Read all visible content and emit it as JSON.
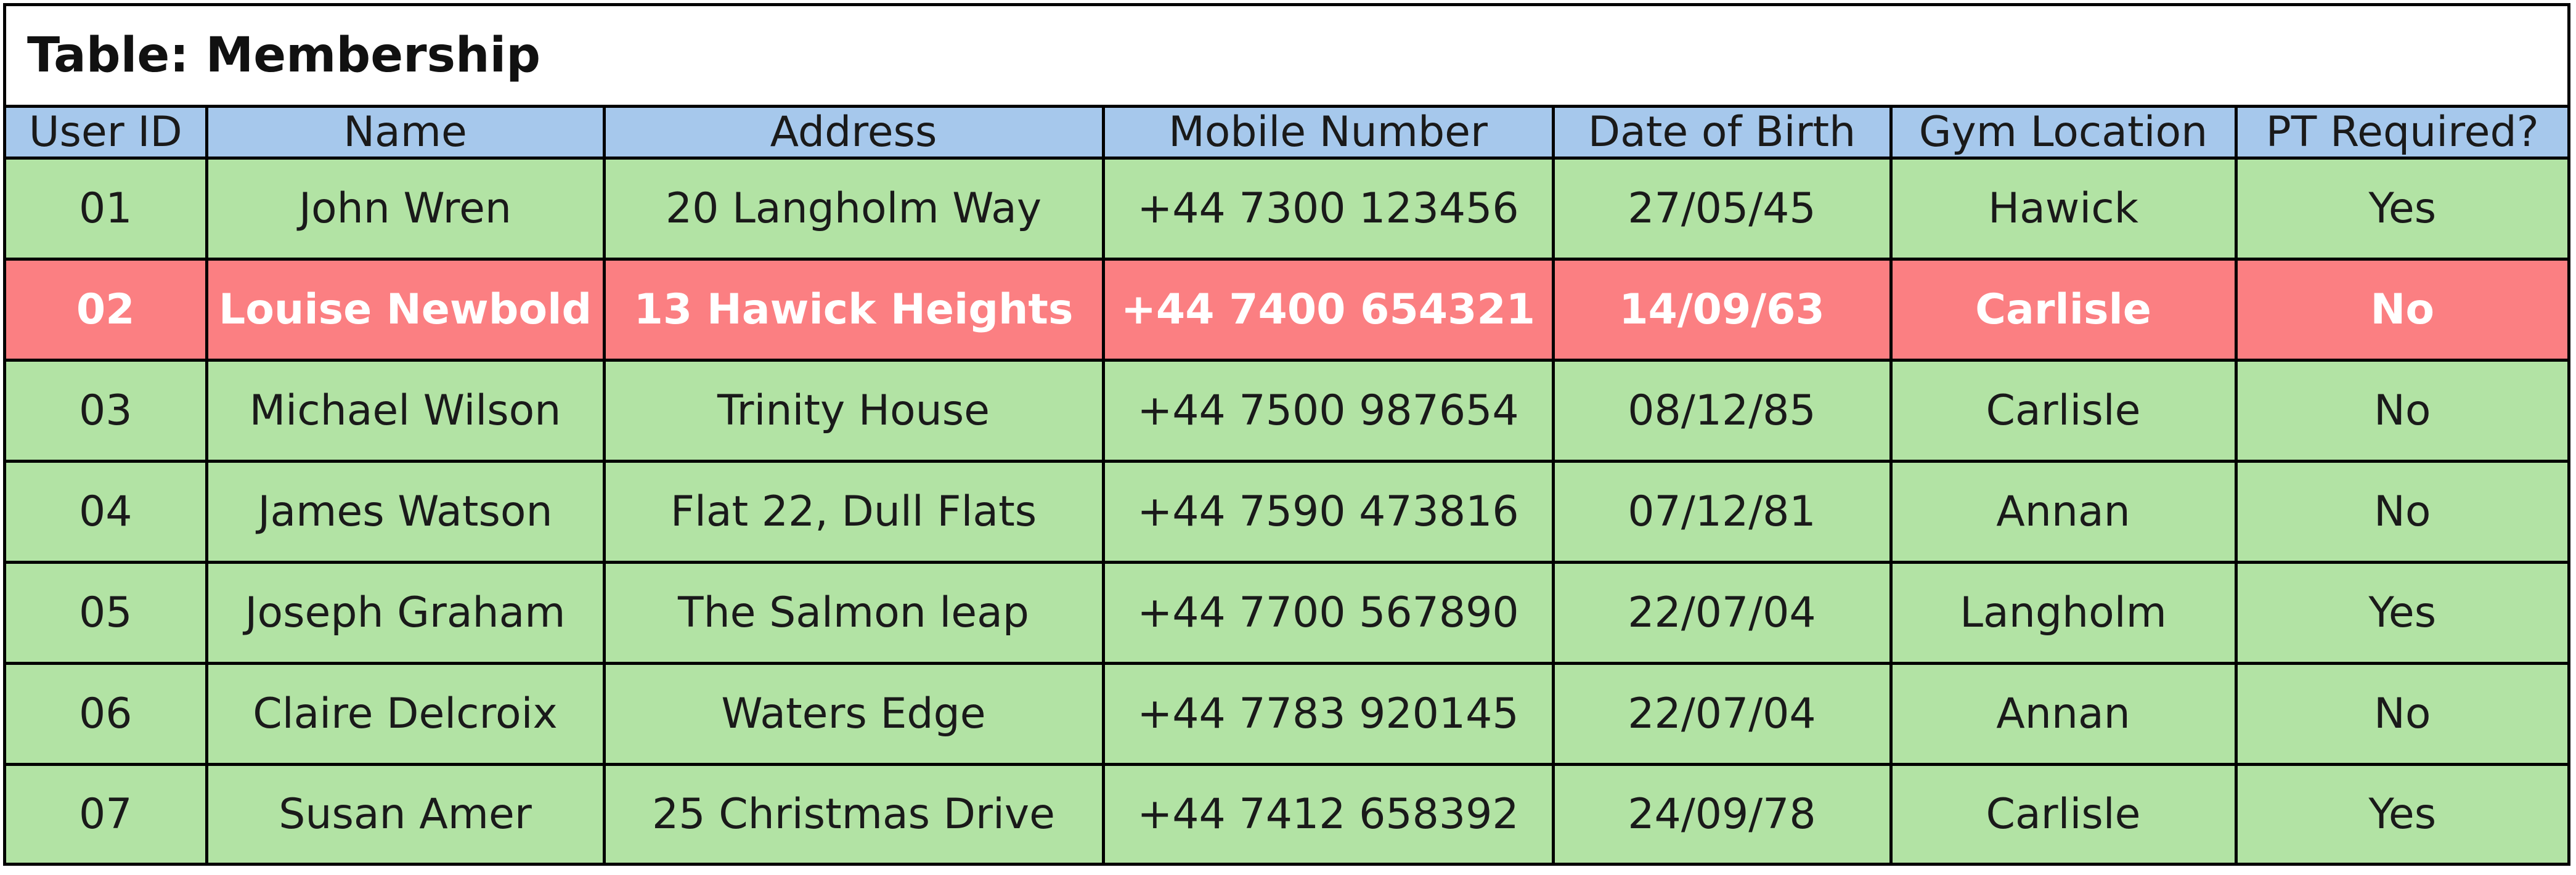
{
  "table": {
    "title": "Table: Membership",
    "columns": [
      "User ID",
      "Name",
      "Address",
      "Mobile Number",
      "Date of Birth",
      "Gym Location",
      "PT Required?"
    ],
    "rows": [
      {
        "cells": [
          "01",
          "John Wren",
          "20 Langholm Way",
          "+44 7300 123456",
          "27/05/45",
          "Hawick",
          "Yes"
        ],
        "highlighted": false
      },
      {
        "cells": [
          "02",
          "Louise Newbold",
          "13 Hawick Heights",
          "+44 7400 654321",
          "14/09/63",
          "Carlisle",
          "No"
        ],
        "highlighted": true
      },
      {
        "cells": [
          "03",
          "Michael Wilson",
          "Trinity House",
          "+44 7500 987654",
          "08/12/85",
          "Carlisle",
          "No"
        ],
        "highlighted": false
      },
      {
        "cells": [
          "04",
          "James Watson",
          "Flat 22, Dull Flats",
          "+44 7590 473816",
          "07/12/81",
          "Annan",
          "No"
        ],
        "highlighted": false
      },
      {
        "cells": [
          "05",
          "Joseph Graham",
          "The Salmon leap",
          "+44 7700 567890",
          "22/07/04",
          "Langholm",
          "Yes"
        ],
        "highlighted": false
      },
      {
        "cells": [
          "06",
          "Claire Delcroix",
          "Waters Edge",
          "+44 7783 920145",
          "22/07/04",
          "Annan",
          "No"
        ],
        "highlighted": false
      },
      {
        "cells": [
          "07",
          "Susan Amer",
          "25 Christmas Drive",
          "+44 7412 658392",
          "24/09/78",
          "Carlisle",
          "Yes"
        ],
        "highlighted": false
      }
    ]
  },
  "colors": {
    "header_background": "#a6c8ec",
    "row_background": "#b2e3a4",
    "highlight_row_background": "#fb7f82",
    "highlight_text": "#ffffff",
    "border": "#000000"
  }
}
